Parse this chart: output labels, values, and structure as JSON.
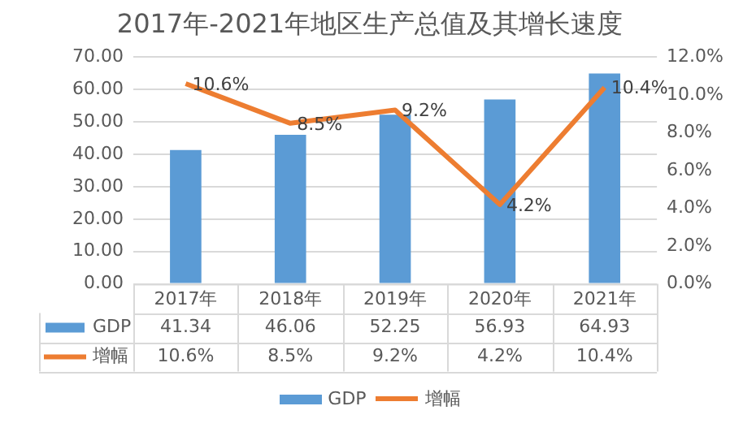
{
  "chart_data": {
    "type": "bar",
    "title": "2017年-2021年地区生产总值及其增长速度",
    "categories": [
      "2017年",
      "2018年",
      "2019年",
      "2020年",
      "2021年"
    ],
    "series": [
      {
        "name": "GDP",
        "color": "#5b9bd5",
        "values": [
          41.34,
          46.06,
          52.25,
          56.93,
          64.93
        ],
        "value_labels": [
          "41.34",
          "46.06",
          "52.25",
          "56.93",
          "64.93"
        ]
      },
      {
        "name": "增幅",
        "type": "line",
        "axis": "y2",
        "color": "#ed7d31",
        "values": [
          10.6,
          8.5,
          9.2,
          4.2,
          10.4
        ],
        "value_labels": [
          "10.6%",
          "8.5%",
          "9.2%",
          "4.2%",
          "10.4%"
        ]
      }
    ],
    "ylim": [
      0,
      70
    ],
    "yticks": [
      {
        "value": 0,
        "label": "0.00"
      },
      {
        "value": 10,
        "label": "10.00"
      },
      {
        "value": 20,
        "label": "20.00"
      },
      {
        "value": 30,
        "label": "30.00"
      },
      {
        "value": 40,
        "label": "40.00"
      },
      {
        "value": 50,
        "label": "50.00"
      },
      {
        "value": 60,
        "label": "60.00"
      },
      {
        "value": 70,
        "label": "70.00"
      }
    ],
    "y2lim": [
      0,
      12
    ],
    "y2ticks": [
      {
        "value": 0,
        "label": "0.0%"
      },
      {
        "value": 2,
        "label": "2.0%"
      },
      {
        "value": 4,
        "label": "4.0%"
      },
      {
        "value": 6,
        "label": "6.0%"
      },
      {
        "value": 8,
        "label": "8.0%"
      },
      {
        "value": 10,
        "label": "10.0%"
      },
      {
        "value": 12,
        "label": "12.0%"
      }
    ],
    "grid": "y",
    "legend": "bottom",
    "marker": "none"
  }
}
